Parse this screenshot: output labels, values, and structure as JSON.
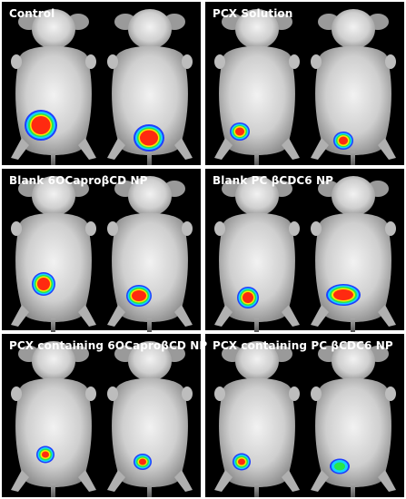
{
  "figure": {
    "panels": [
      {
        "title": "Control",
        "mice": [
          {
            "signal": {
              "intensity": "high",
              "colors": [
                "#1e3fff",
                "#18d0ff",
                "#28e64a",
                "#ffe600",
                "#ff2a10"
              ]
            }
          },
          {
            "signal": {
              "intensity": "high",
              "colors": [
                "#1e3fff",
                "#18d0ff",
                "#28e64a",
                "#ffe600",
                "#ff2a10"
              ]
            }
          }
        ]
      },
      {
        "title": "PCX Solution",
        "mice": [
          {
            "signal": {
              "intensity": "medium",
              "colors": [
                "#1e3fff",
                "#18d0ff",
                "#28e64a",
                "#ffe600",
                "#ff2a10"
              ]
            }
          },
          {
            "signal": {
              "intensity": "medium",
              "colors": [
                "#1e3fff",
                "#18d0ff",
                "#28e64a",
                "#ffe600",
                "#ff2a10"
              ]
            }
          }
        ]
      },
      {
        "title": "Blank 6OCaproβCD NP",
        "mice": [
          {
            "signal": {
              "intensity": "high",
              "colors": [
                "#1e3fff",
                "#18d0ff",
                "#28e64a",
                "#ffe600",
                "#ff2a10"
              ]
            }
          },
          {
            "signal": {
              "intensity": "high",
              "colors": [
                "#1e3fff",
                "#18d0ff",
                "#28e64a",
                "#ffe600",
                "#ff2a10"
              ]
            }
          }
        ]
      },
      {
        "title": "Blank PC βCDC6  NP",
        "mice": [
          {
            "signal": {
              "intensity": "high",
              "colors": [
                "#1e3fff",
                "#18d0ff",
                "#28e64a",
                "#ffe600",
                "#ff2a10"
              ]
            }
          },
          {
            "signal": {
              "intensity": "high",
              "colors": [
                "#1e3fff",
                "#18d0ff",
                "#28e64a",
                "#ffe600",
                "#ff2a10"
              ]
            }
          }
        ]
      },
      {
        "title": "PCX containing 6OCaproβCD NP",
        "mice": [
          {
            "signal": {
              "intensity": "low",
              "colors": [
                "#1e3fff",
                "#18d0ff",
                "#28e64a",
                "#ffe600",
                "#ff2a10"
              ]
            }
          },
          {
            "signal": {
              "intensity": "low",
              "colors": [
                "#1e3fff",
                "#18d0ff",
                "#28e64a",
                "#ffe600",
                "#ff2a10"
              ]
            }
          }
        ]
      },
      {
        "title": "PCX containing PC βCDC6 NP",
        "mice": [
          {
            "signal": {
              "intensity": "low",
              "colors": [
                "#1e3fff",
                "#18d0ff",
                "#28e64a",
                "#ffe600",
                "#ff2a10"
              ]
            }
          },
          {
            "signal": {
              "intensity": "very-low",
              "colors": [
                "#1e3fff",
                "#18d0ff",
                "#28e64a"
              ]
            }
          }
        ]
      }
    ],
    "colors": {
      "background": "#000000",
      "mouse_fur": "#d9d9d9",
      "title_text": "#ffffff"
    }
  }
}
